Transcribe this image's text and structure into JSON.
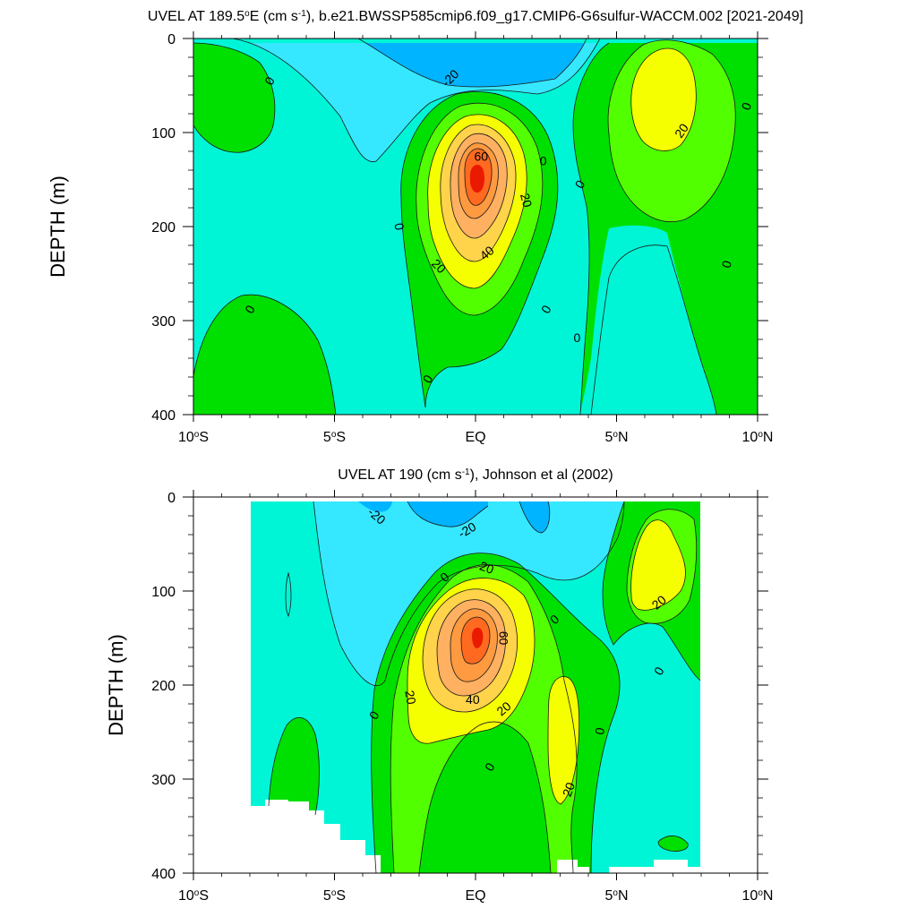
{
  "colors": {
    "lt_neg20": "#00b4ff",
    "neg20_neg10": "#35e8ff",
    "neg10_0": "#00f5d6",
    "0_10": "#00e000",
    "10_20": "#52ff00",
    "20_30": "#f5ff00",
    "30_40": "#ffd34a",
    "40_50": "#ffb060",
    "50_60": "#ff9a40",
    "60_70": "#ff6a20",
    "gt_70": "#ea1a00",
    "line": "#1a1a1a",
    "missing": "#ffffff"
  },
  "chart_data": [
    {
      "type": "contour",
      "title_parts": [
        "UVEL AT 189.5",
        "o",
        "E (cm s",
        "-1",
        "), b.e21.BWSSP585cmip6.f09_g17.CMIP6-G6sulfur-WACCM.002 [2021-2049]"
      ],
      "xlabel": "",
      "ylabel": "DEPTH (m)",
      "xlim": [
        -10,
        10
      ],
      "ylim": [
        0,
        400
      ],
      "y_inverted": true,
      "x_ticks": [
        {
          "value": -10,
          "num": "10",
          "deg": "o",
          "hemi": "S"
        },
        {
          "value": -5,
          "num": "5",
          "deg": "o",
          "hemi": "S"
        },
        {
          "value": 0,
          "num": "EQ",
          "deg": "",
          "hemi": ""
        },
        {
          "value": 5,
          "num": "5",
          "deg": "o",
          "hemi": "N"
        },
        {
          "value": 10,
          "num": "10",
          "deg": "o",
          "hemi": "N"
        }
      ],
      "y_ticks": [
        0,
        100,
        200,
        300,
        400
      ],
      "levels": [
        -20,
        -10,
        0,
        10,
        20,
        30,
        40,
        50,
        60,
        70
      ],
      "contour_labels": [
        {
          "text": "0",
          "lat": -7.3,
          "depth": 45,
          "rot": -60
        },
        {
          "text": "-20",
          "lat": -0.9,
          "depth": 42,
          "rot": -45
        },
        {
          "text": "60",
          "lat": 0.2,
          "depth": 125,
          "rot": 0
        },
        {
          "text": "0",
          "lat": 2.4,
          "depth": 130,
          "rot": 0
        },
        {
          "text": "0",
          "lat": 3.7,
          "depth": 155,
          "rot": -60
        },
        {
          "text": "20",
          "lat": 1.8,
          "depth": 172,
          "rot": 75
        },
        {
          "text": "40",
          "lat": 0.4,
          "depth": 228,
          "rot": -40
        },
        {
          "text": "20",
          "lat": -1.3,
          "depth": 242,
          "rot": 45
        },
        {
          "text": "0",
          "lat": -2.7,
          "depth": 200,
          "rot": 80
        },
        {
          "text": "0",
          "lat": -8,
          "depth": 288,
          "rot": -60
        },
        {
          "text": "0",
          "lat": 2.5,
          "depth": 288,
          "rot": -60
        },
        {
          "text": "0",
          "lat": 3.6,
          "depth": 318,
          "rot": 0
        },
        {
          "text": "0",
          "lat": -1.7,
          "depth": 362,
          "rot": -60
        },
        {
          "text": "20",
          "lat": 7.3,
          "depth": 98,
          "rot": -55
        },
        {
          "text": "0",
          "lat": 9.6,
          "depth": 72,
          "rot": -70
        },
        {
          "text": "0",
          "lat": 8.9,
          "depth": 240,
          "rot": -75
        }
      ]
    },
    {
      "type": "contour",
      "title_parts": [
        "UVEL AT 190 (cm s",
        "-1",
        "), Johnson et al (2002)"
      ],
      "xlabel": "",
      "ylabel": "DEPTH (m)",
      "xlim": [
        -10,
        10
      ],
      "ylim": [
        0,
        400
      ],
      "y_inverted": true,
      "x_ticks": [
        {
          "value": -10,
          "num": "10",
          "deg": "o",
          "hemi": "S"
        },
        {
          "value": -5,
          "num": "5",
          "deg": "o",
          "hemi": "S"
        },
        {
          "value": 0,
          "num": "EQ",
          "deg": "",
          "hemi": ""
        },
        {
          "value": 5,
          "num": "5",
          "deg": "o",
          "hemi": "N"
        },
        {
          "value": 10,
          "num": "10",
          "deg": "o",
          "hemi": "N"
        }
      ],
      "y_ticks": [
        0,
        100,
        200,
        300,
        400
      ],
      "levels": [
        -20,
        -10,
        0,
        10,
        20,
        30,
        40,
        50,
        60,
        70
      ],
      "data_lon_range": [
        -8,
        8
      ],
      "contour_labels": [
        {
          "text": "-20",
          "lat": -3.5,
          "depth": 20,
          "rot": 40
        },
        {
          "text": "-20",
          "lat": -0.3,
          "depth": 35,
          "rot": -30
        },
        {
          "text": "20",
          "lat": 0.4,
          "depth": 75,
          "rot": 20
        },
        {
          "text": "0",
          "lat": -1.1,
          "depth": 85,
          "rot": -40
        },
        {
          "text": "60",
          "lat": 1.0,
          "depth": 150,
          "rot": 90
        },
        {
          "text": "0",
          "lat": 2.8,
          "depth": 130,
          "rot": -40
        },
        {
          "text": "20",
          "lat": 6.5,
          "depth": 112,
          "rot": -40
        },
        {
          "text": "0",
          "lat": 6.5,
          "depth": 185,
          "rot": -60
        },
        {
          "text": "20",
          "lat": -2.3,
          "depth": 213,
          "rot": 80
        },
        {
          "text": "40",
          "lat": -0.1,
          "depth": 215,
          "rot": 0
        },
        {
          "text": "20",
          "lat": 1.0,
          "depth": 225,
          "rot": -40
        },
        {
          "text": "0",
          "lat": -3.6,
          "depth": 232,
          "rot": -60
        },
        {
          "text": "0",
          "lat": 4.4,
          "depth": 249,
          "rot": -80
        },
        {
          "text": "0",
          "lat": 0.5,
          "depth": 287,
          "rot": -60
        },
        {
          "text": "20",
          "lat": 3.3,
          "depth": 311,
          "rot": -70
        }
      ]
    }
  ]
}
